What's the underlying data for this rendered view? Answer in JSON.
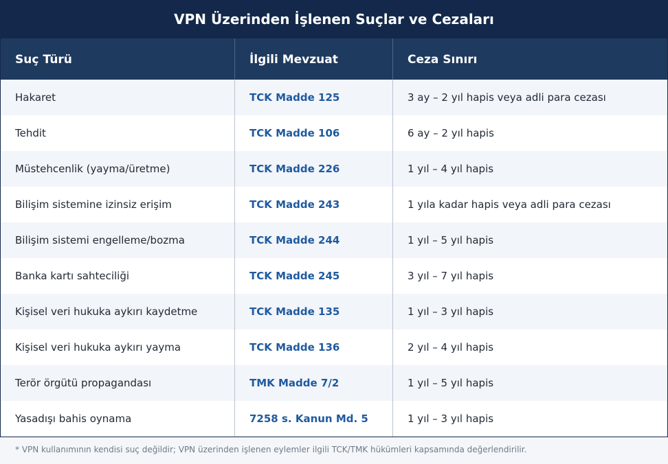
{
  "title": "VPN Üzerinden İşlenen Suçlar ve Cezaları",
  "table": {
    "headers": [
      "Suç Türü",
      "İlgili Mevzuat",
      "Ceza Sınırı"
    ],
    "rows": [
      {
        "crime": "Hakaret",
        "law": "TCK Madde 125",
        "penalty": "3 ay – 2 yıl hapis veya adli para cezası"
      },
      {
        "crime": "Tehdit",
        "law": "TCK Madde 106",
        "penalty": "6 ay – 2 yıl hapis"
      },
      {
        "crime": "Müstehcenlik (yayma/üretme)",
        "law": "TCK Madde 226",
        "penalty": "1 yıl – 4 yıl hapis"
      },
      {
        "crime": "Bilişim sistemine izinsiz erişim",
        "law": "TCK Madde 243",
        "penalty": "1 yıla kadar hapis veya adli para cezası"
      },
      {
        "crime": "Bilişim sistemi engelleme/bozma",
        "law": "TCK Madde 244",
        "penalty": "1 yıl – 5 yıl hapis"
      },
      {
        "crime": "Banka kartı sahteciliği",
        "law": "TCK Madde 245",
        "penalty": "3 yıl – 7 yıl hapis"
      },
      {
        "crime": "Kişisel veri hukuka aykırı kaydetme",
        "law": "TCK Madde 135",
        "penalty": "1 yıl – 3 yıl hapis"
      },
      {
        "crime": "Kişisel veri hukuka aykırı yayma",
        "law": "TCK Madde 136",
        "penalty": "2 yıl – 4 yıl hapis"
      },
      {
        "crime": "Terör örgütü propagandası",
        "law": "TMK Madde 7/2",
        "penalty": "1 yıl – 5 yıl hapis"
      },
      {
        "crime": "Yasadışı bahis oynama",
        "law": "7258 s. Kanun Md. 5",
        "penalty": "1 yıl – 3 yıl hapis"
      }
    ]
  },
  "footnote": "* VPN kullanımının kendisi suç değildir; VPN üzerinden işlenen eylemler ilgili TCK/TMK hükümleri kapsamında değerlendirilir.",
  "colors": {
    "title_bg": "#13284a",
    "header_bg": "#1e3a5f",
    "law_text": "#1f5aa0",
    "row_alt_bg": "#f2f5f9"
  }
}
